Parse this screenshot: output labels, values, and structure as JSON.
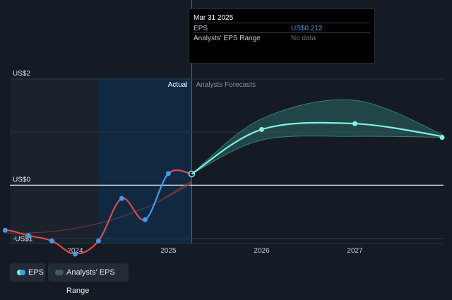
{
  "tooltip": {
    "date": "Mar 31 2025",
    "rows": [
      {
        "label": "EPS",
        "value": "US$0.212"
      },
      {
        "label": "Analysts' EPS Range",
        "value": "No data"
      }
    ]
  },
  "labels": {
    "actual": "Actual",
    "forecast": "Analysts Forecasts"
  },
  "legend": [
    {
      "label": "EPS"
    },
    {
      "label": "Analysts' EPS Range"
    }
  ],
  "colors": {
    "background": "#151b24",
    "actual_band": "#0f2a44",
    "eps_rising": "#3f9bf0",
    "eps_falling": "#e2464c",
    "forecast_line": "#7ff0e6",
    "range_fill": "#2e6a66",
    "zero_line": "#ffffff"
  },
  "chart_data": {
    "type": "line",
    "y_ticks": [
      {
        "label": "US$2",
        "value": 2
      },
      {
        "label": "US$0",
        "value": 0
      },
      {
        "label": "-US$1",
        "value": -1
      }
    ],
    "x_ticks": [
      {
        "label": "2024",
        "value": 2024
      },
      {
        "label": "2025",
        "value": 2025
      },
      {
        "label": "2026",
        "value": 2026
      },
      {
        "label": "2027",
        "value": 2027
      }
    ],
    "ylim": [
      -1.1,
      2
    ],
    "xlim": [
      2023.3,
      2027.95
    ],
    "actual_divider": 2025.25,
    "series": [
      {
        "name": "EPS",
        "x": [
          2023.0,
          2023.25,
          2023.5,
          2023.75,
          2024.0,
          2024.25,
          2024.5,
          2024.75,
          2025.0,
          2025.25
        ],
        "y": [
          -0.95,
          -0.85,
          -0.95,
          -1.05,
          -1.3,
          -1.05,
          -0.25,
          -0.65,
          0.22,
          0.212
        ],
        "visible_start": 2023.25
      },
      {
        "name": "EPS Forecast",
        "x": [
          2025.25,
          2026.0,
          2027.0,
          2028.0
        ],
        "y": [
          0.212,
          1.05,
          1.16,
          0.9
        ]
      }
    ],
    "eps_range": {
      "x": [
        2025.25,
        2026.0,
        2027.0,
        2028.0
      ],
      "low": [
        0.212,
        0.85,
        0.92,
        0.9
      ],
      "high": [
        0.212,
        1.25,
        1.6,
        0.9
      ]
    },
    "grid": true
  }
}
